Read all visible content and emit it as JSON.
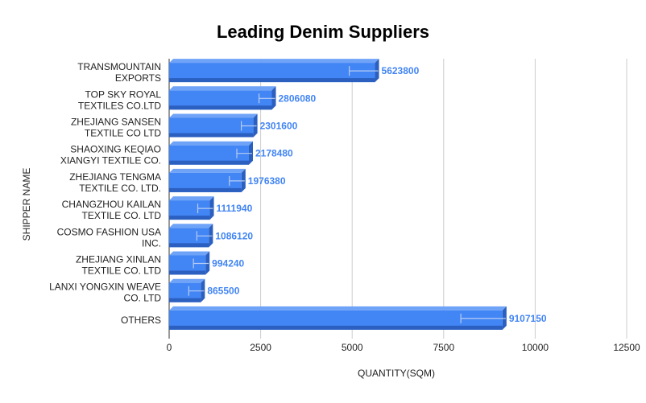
{
  "chart_data": {
    "type": "bar",
    "orientation": "horizontal",
    "title": "Leading Denim Suppliers",
    "xlabel": "QUANTITY(SQM)",
    "ylabel": "SHIPPER NAME",
    "categories": [
      [
        "TRANSMOUNTAIN",
        "EXPORTS"
      ],
      [
        "TOP SKY ROYAL",
        "TEXTILES CO.LTD"
      ],
      [
        "ZHEJIANG SANSEN",
        "TEXTILE CO LTD"
      ],
      [
        "SHAOXING KEQIAO",
        "XIANGYI TEXTILE CO."
      ],
      [
        "ZHEJIANG TENGMA",
        "TEXTILE CO. LTD."
      ],
      [
        "CHANGZHOU KAILAN",
        "TEXTILE CO. LTD"
      ],
      [
        "COSMO FASHION USA",
        "INC."
      ],
      [
        "ZHEJIANG XINLAN",
        "TEXTILE CO. LTD"
      ],
      [
        "LANXI YONGXIN WEAVE",
        "CO. LTD"
      ],
      [
        "OTHERS"
      ]
    ],
    "values": [
      5623800,
      2806080,
      2301600,
      2178480,
      1976380,
      1111940,
      1086120,
      994240,
      865500,
      9107150
    ],
    "data_labels": [
      "5623800",
      "2806080",
      "2301600",
      "2178480",
      "1976380",
      "1111940",
      "1086120",
      "994240",
      "865500",
      "9107150"
    ],
    "xlim": [
      0,
      12500
    ],
    "x_tick_labels": [
      "0",
      "2500",
      "5000",
      "7500",
      "10000",
      "12500"
    ],
    "x_ticks": [
      0,
      2500,
      5000,
      7500,
      10000,
      12500
    ],
    "bar_color": "#4285f4",
    "bar_top_color": "#6fa3f7",
    "bar_side_color": "#2b5fc0",
    "label_color": "#4285f4",
    "grid": true,
    "legend": "none"
  }
}
